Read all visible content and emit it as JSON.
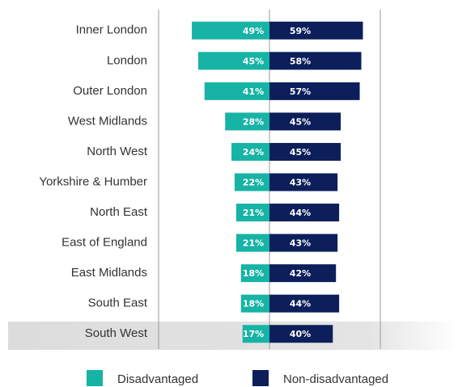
{
  "chart_data": {
    "type": "diverging-bar",
    "categories": [
      "Inner London",
      "London",
      "Outer London",
      "West Midlands",
      "North West",
      "Yorkshire & Humber",
      "North East",
      "East of England",
      "East Midlands",
      "South East",
      "South West"
    ],
    "series": [
      {
        "name": "Disadvantaged",
        "color": "#17b3a5",
        "values": [
          49,
          45,
          41,
          28,
          24,
          22,
          21,
          21,
          18,
          18,
          17
        ],
        "value_labels": [
          "49%",
          "45%",
          "41%",
          "28%",
          "24%",
          "22%",
          "21%",
          "21%",
          "18%",
          "18%",
          "17%"
        ]
      },
      {
        "name": "Non-disadvantaged",
        "color": "#0c1f5b",
        "values": [
          59,
          58,
          57,
          45,
          45,
          43,
          44,
          43,
          42,
          44,
          40
        ],
        "value_labels": [
          "59%",
          "58%",
          "57%",
          "45%",
          "45%",
          "43%",
          "44%",
          "43%",
          "42%",
          "44%",
          "40%"
        ]
      }
    ],
    "xlim": [
      -70,
      70
    ],
    "xticks": [
      -70,
      0,
      70
    ],
    "grid": true,
    "legend": "bottom"
  }
}
